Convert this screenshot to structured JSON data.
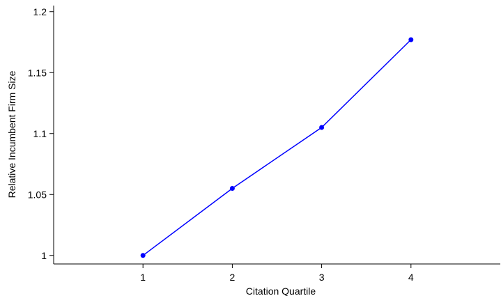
{
  "chart_data": {
    "type": "line",
    "title": "",
    "xlabel": "Citation Quartile",
    "ylabel": "Relative Incumbent Firm Size",
    "xlim": [
      0,
      5
    ],
    "ylim": [
      0.993,
      1.205
    ],
    "x_ticks": [
      1,
      2,
      3,
      4
    ],
    "x_tick_labels": [
      "1",
      "2",
      "3",
      "4"
    ],
    "y_ticks": [
      1,
      1.05,
      1.1,
      1.15,
      1.2
    ],
    "y_tick_labels": [
      "1",
      "1.05",
      "1.1",
      "1.15",
      "1.2"
    ],
    "grid": false,
    "legend": "none",
    "series": [
      {
        "color": "#0000ff",
        "marker": "circle",
        "x": [
          1,
          2,
          3,
          4
        ],
        "values": [
          1.0,
          1.055,
          1.105,
          1.177
        ]
      }
    ]
  }
}
